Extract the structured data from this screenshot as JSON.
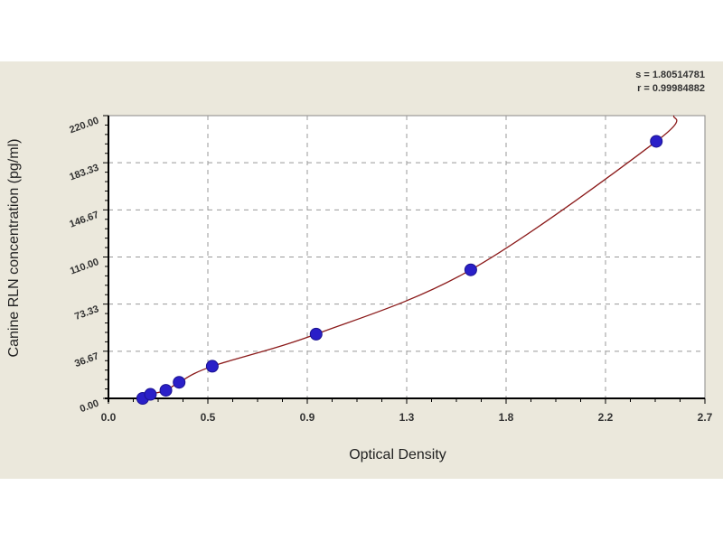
{
  "chart_data": {
    "type": "scatter",
    "title": "",
    "xlabel": "Optical Density",
    "ylabel": "Canine RLN concentration (pg/ml)",
    "xlim": [
      0,
      2.7
    ],
    "ylim": [
      0,
      220
    ],
    "x_tick_labels": [
      "0.0",
      "0.5",
      "0.9",
      "1.3",
      "1.8",
      "2.2",
      "2.7"
    ],
    "x_ticks": [
      0,
      0.45,
      0.9,
      1.35,
      1.8,
      2.25,
      2.7
    ],
    "y_tick_labels": [
      "0.00",
      "36.67",
      "73.33",
      "110.00",
      "146.67",
      "183.33",
      "220.00"
    ],
    "y_ticks": [
      0,
      36.67,
      73.33,
      110,
      146.67,
      183.33,
      220
    ],
    "grid": "dashed",
    "stats": [
      "s = 1.80514781",
      "r = 0.99984882"
    ],
    "points": {
      "x": [
        0.155,
        0.19,
        0.26,
        0.32,
        0.47,
        0.94,
        1.64,
        2.48
      ],
      "y": [
        0,
        3.12,
        6.25,
        12.5,
        25,
        50,
        100,
        200
      ]
    },
    "colors": {
      "point": "#2a1fc8",
      "curve": "#8b1a1a",
      "background": "#ebe8dc",
      "plot": "#ffffff"
    }
  }
}
